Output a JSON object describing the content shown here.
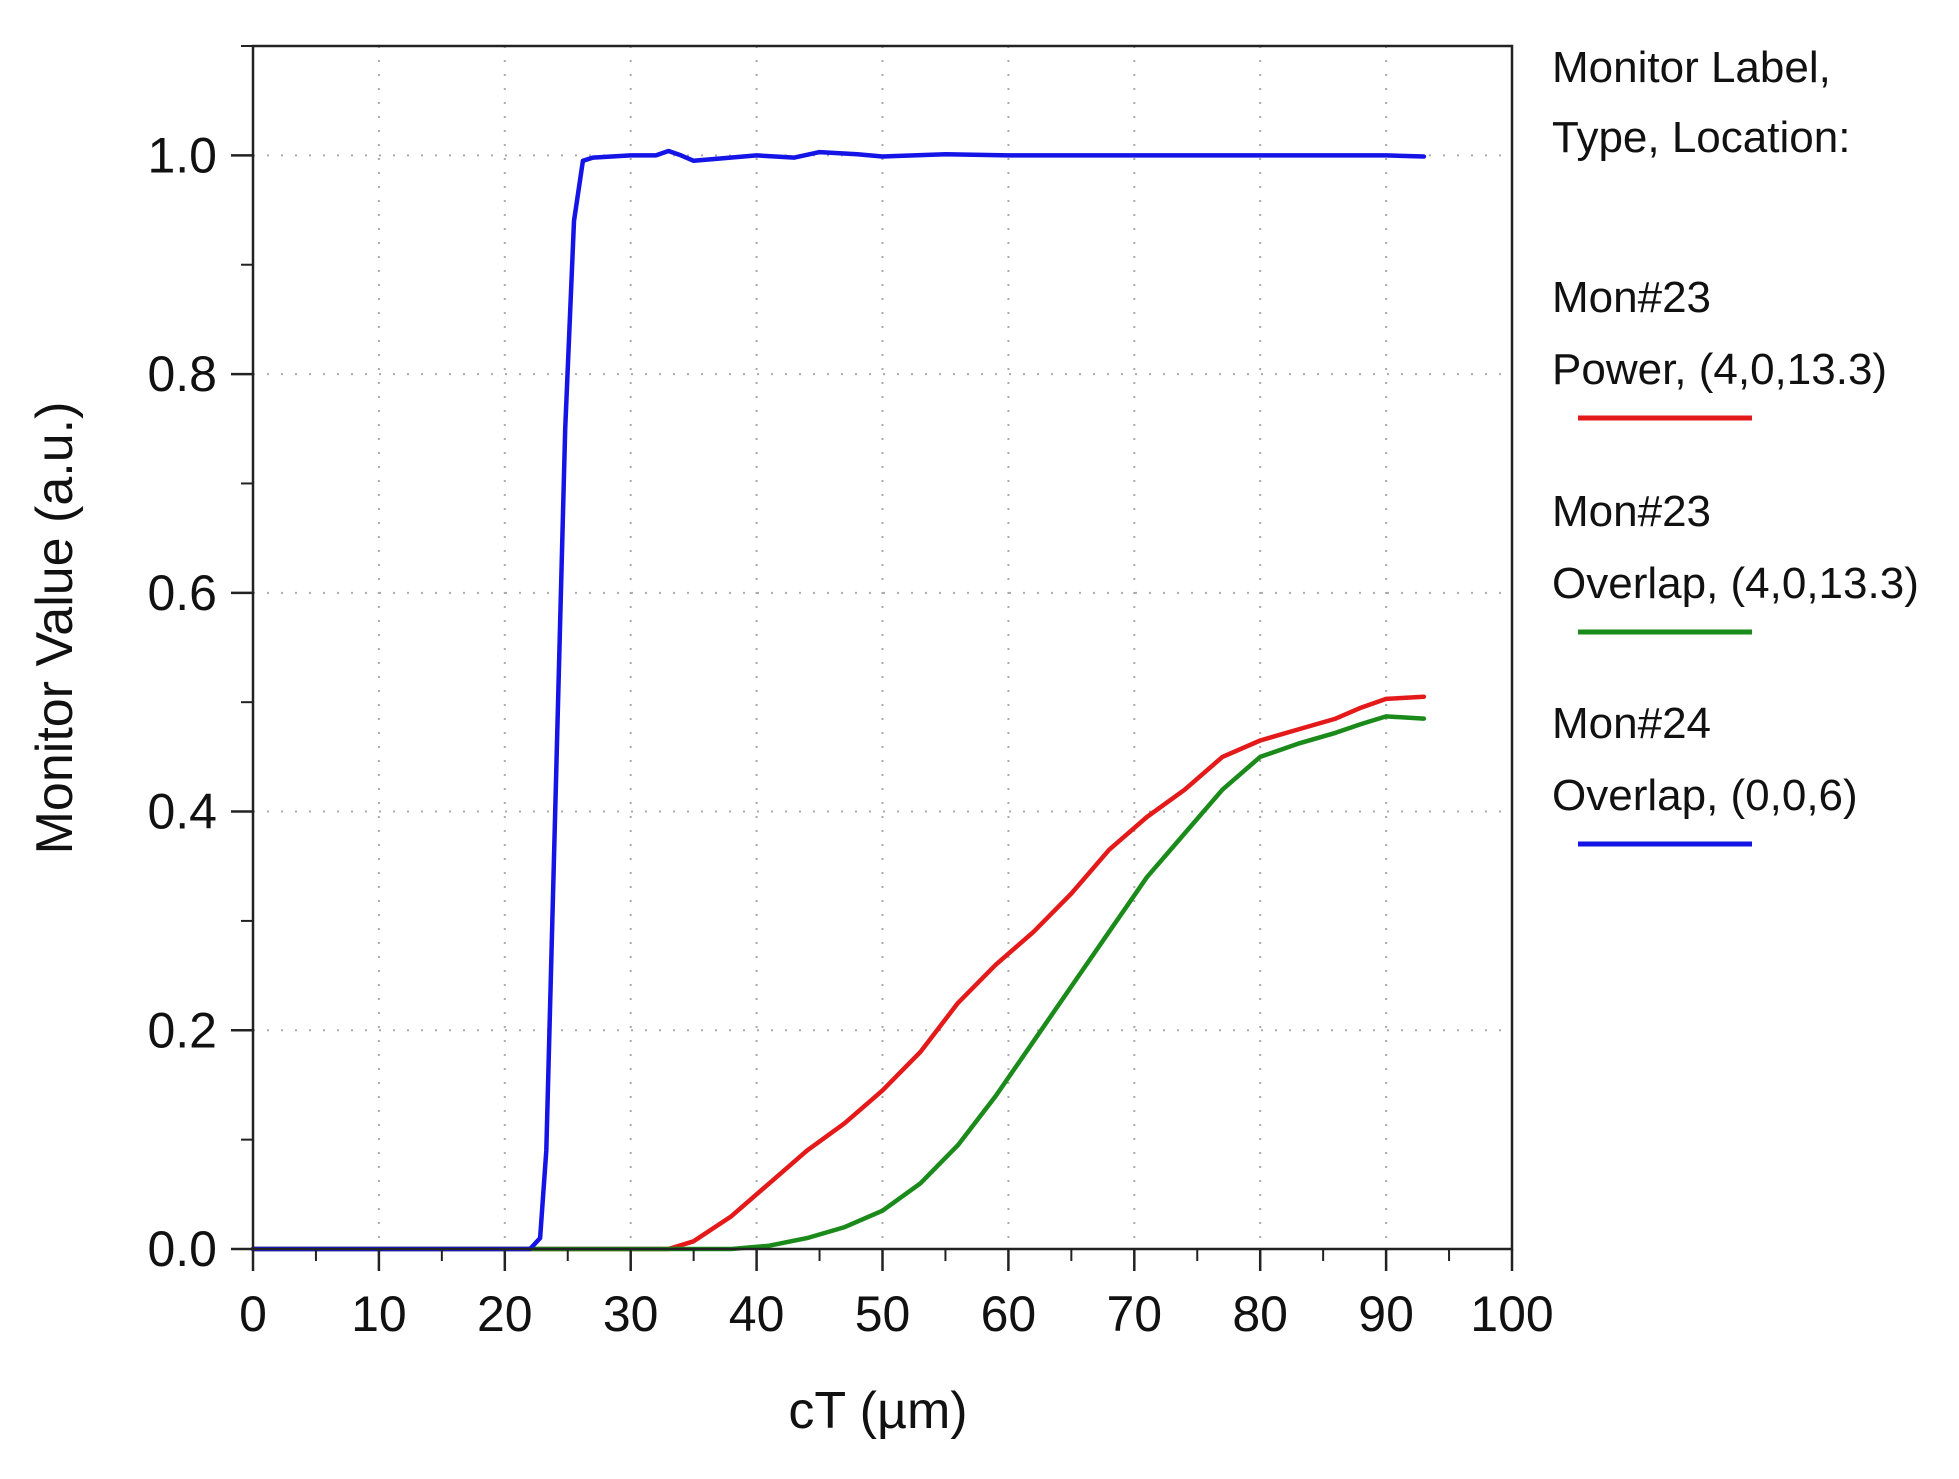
{
  "chart_data": {
    "type": "line",
    "xlabel": "cT (µm)",
    "ylabel": "Monitor Value (a.u.)",
    "xlim": [
      0,
      100
    ],
    "ylim": [
      0,
      1.1
    ],
    "x_ticks": [
      "0",
      "10",
      "20",
      "30",
      "40",
      "50",
      "60",
      "70",
      "80",
      "90",
      "100"
    ],
    "y_ticks": [
      "0.0",
      "0.2",
      "0.4",
      "0.6",
      "0.8",
      "1.0"
    ],
    "grid": "dotted",
    "legend_position": "right",
    "legend_header": [
      "Monitor Label,",
      "Type, Location:"
    ],
    "series": [
      {
        "name": "Mon#23 Power, (4,0,13.3)",
        "label_lines": [
          "Mon#23",
          "Power, (4,0,13.3)"
        ],
        "color": "#e41a1a",
        "points": [
          [
            0,
            0
          ],
          [
            33,
            0
          ],
          [
            35,
            0.007
          ],
          [
            38,
            0.03
          ],
          [
            41,
            0.06
          ],
          [
            44,
            0.09
          ],
          [
            47,
            0.115
          ],
          [
            50,
            0.145
          ],
          [
            53,
            0.18
          ],
          [
            56,
            0.225
          ],
          [
            59,
            0.26
          ],
          [
            62,
            0.29
          ],
          [
            65,
            0.325
          ],
          [
            68,
            0.365
          ],
          [
            71,
            0.395
          ],
          [
            74,
            0.42
          ],
          [
            77,
            0.45
          ],
          [
            80,
            0.465
          ],
          [
            83,
            0.475
          ],
          [
            86,
            0.485
          ],
          [
            88,
            0.495
          ],
          [
            90,
            0.503
          ],
          [
            93,
            0.505
          ]
        ]
      },
      {
        "name": "Mon#23 Overlap, (4,0,13.3)",
        "label_lines": [
          "Mon#23",
          "Overlap, (4,0,13.3)"
        ],
        "color": "#1a8a1a",
        "points": [
          [
            0,
            0
          ],
          [
            38,
            0
          ],
          [
            41,
            0.003
          ],
          [
            44,
            0.01
          ],
          [
            47,
            0.02
          ],
          [
            50,
            0.035
          ],
          [
            53,
            0.06
          ],
          [
            56,
            0.095
          ],
          [
            59,
            0.14
          ],
          [
            62,
            0.19
          ],
          [
            65,
            0.24
          ],
          [
            68,
            0.29
          ],
          [
            71,
            0.34
          ],
          [
            74,
            0.38
          ],
          [
            77,
            0.42
          ],
          [
            80,
            0.45
          ],
          [
            83,
            0.462
          ],
          [
            86,
            0.472
          ],
          [
            88,
            0.48
          ],
          [
            90,
            0.487
          ],
          [
            93,
            0.485
          ]
        ]
      },
      {
        "name": "Mon#24 Overlap, (0,0,6)",
        "label_lines": [
          "Mon#24",
          "Overlap, (0,0,6)"
        ],
        "color": "#1414e6",
        "points": [
          [
            0,
            0
          ],
          [
            22,
            0
          ],
          [
            22.8,
            0.01
          ],
          [
            23.3,
            0.09
          ],
          [
            24,
            0.4
          ],
          [
            24.8,
            0.75
          ],
          [
            25.5,
            0.94
          ],
          [
            26.2,
            0.995
          ],
          [
            27,
            0.998
          ],
          [
            30,
            1.0
          ],
          [
            32,
            1.0
          ],
          [
            33,
            1.004
          ],
          [
            34,
            1.0
          ],
          [
            35,
            0.995
          ],
          [
            37,
            0.997
          ],
          [
            40,
            1.0
          ],
          [
            43,
            0.998
          ],
          [
            45,
            1.003
          ],
          [
            48,
            1.001
          ],
          [
            50,
            0.999
          ],
          [
            55,
            1.001
          ],
          [
            60,
            1.0
          ],
          [
            70,
            1.0
          ],
          [
            80,
            1.0
          ],
          [
            90,
            1.0
          ],
          [
            93,
            0.999
          ]
        ]
      }
    ]
  }
}
